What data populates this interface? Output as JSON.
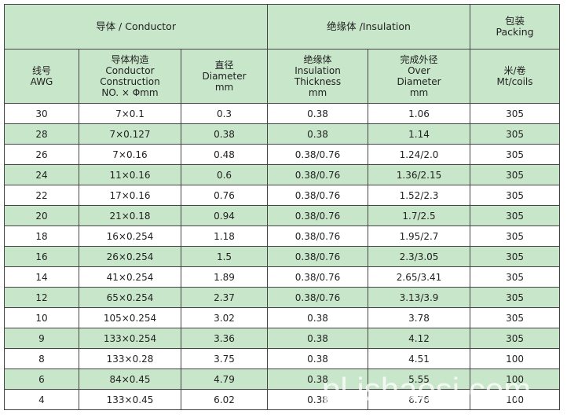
{
  "header": {
    "group_headers": [
      {
        "lines": [
          "导体 / Conductor"
        ],
        "span": 3
      },
      {
        "lines": [
          "绝缘体 /Insulation"
        ],
        "span": 2
      },
      {
        "lines": [
          "包装",
          "Packing"
        ],
        "span": 1
      }
    ],
    "column_headers": [
      [
        "线号",
        "AWG"
      ],
      [
        "导体构造",
        "Conductor",
        "Construction",
        "NO. × Φmm"
      ],
      [
        "直径",
        "Diameter",
        "mm"
      ],
      [
        "绝缘体",
        "Insulation",
        "Thickness",
        "mm"
      ],
      [
        "完成外径",
        "Over",
        "Diameter",
        "mm"
      ],
      [
        "米/卷",
        "Mt/coils"
      ]
    ]
  },
  "table": {
    "rows": [
      [
        "30",
        "7×0.1",
        "0.3",
        "0.38",
        "1.06",
        "305"
      ],
      [
        "28",
        "7×0.127",
        "0.38",
        "0.38",
        "1.14",
        "305"
      ],
      [
        "26",
        "7×0.16",
        "0.48",
        "0.38/0.76",
        "1.24/2.0",
        "305"
      ],
      [
        "24",
        "11×0.16",
        "0.6",
        "0.38/0.76",
        "1.36/2.15",
        "305"
      ],
      [
        "22",
        "17×0.16",
        "0.76",
        "0.38/0.76",
        "1.52/2.3",
        "305"
      ],
      [
        "20",
        "21×0.18",
        "0.94",
        "0.38/0.76",
        "1.7/2.5",
        "305"
      ],
      [
        "18",
        "16×0.254",
        "1.18",
        "0.38/0.76",
        "1.95/2.7",
        "305"
      ],
      [
        "16",
        "26×0.254",
        "1.5",
        "0.38/0.76",
        "2.3/3.05",
        "305"
      ],
      [
        "14",
        "41×0.254",
        "1.89",
        "0.38/0.76",
        "2.65/3.41",
        "305"
      ],
      [
        "12",
        "65×0.254",
        "2.37",
        "0.38/0.76",
        "3.13/3.9",
        "305"
      ],
      [
        "10",
        "105×0.254",
        "3.02",
        "0.38",
        "3.78",
        "305"
      ],
      [
        "9",
        "133×0.254",
        "3.36",
        "0.38",
        "4.12",
        "305"
      ],
      [
        "8",
        "133×0.28",
        "3.75",
        "0.38",
        "4.51",
        "100"
      ],
      [
        "6",
        "84×0.45",
        "4.79",
        "0.38",
        "5.55",
        "100"
      ],
      [
        "4",
        "133×0.45",
        "6.02",
        "0.38",
        "6.76",
        "100"
      ]
    ]
  },
  "watermark": "pl.jshaosi.com"
}
